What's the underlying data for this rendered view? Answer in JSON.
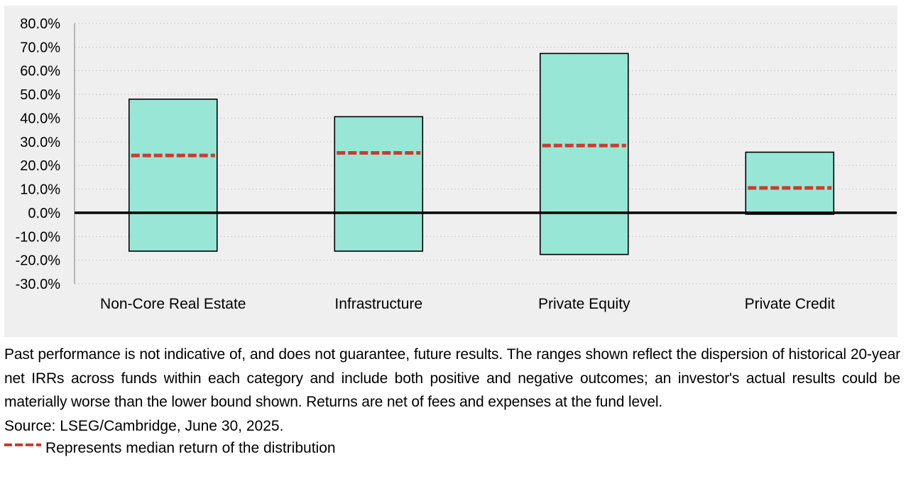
{
  "chart_data": {
    "type": "bar",
    "categories": [
      "Non-Core Real Estate",
      "Infrastructure",
      "Private Equity",
      "Private Credit"
    ],
    "series": [
      {
        "values_low": [
          -16.2,
          -16.2,
          -17.6,
          -0.6
        ],
        "values_high": [
          48.0,
          40.6,
          67.3,
          25.6
        ],
        "median": [
          24.2,
          25.3,
          28.4,
          10.5
        ]
      }
    ],
    "ylim": [
      -30,
      80
    ],
    "yticks": [
      80,
      70,
      60,
      50,
      40,
      30,
      20,
      10,
      0,
      -10,
      -20,
      -30
    ],
    "ytick_labels": [
      "80.0%",
      "70.0%",
      "60.0%",
      "50.0%",
      "40.0%",
      "30.0%",
      "20.0%",
      "10.0%",
      "0.0%",
      "-10.0%",
      "-20.0%",
      "-30.0%"
    ],
    "grid": true,
    "title": "",
    "xlabel": "",
    "ylabel": "",
    "colors": {
      "bar_fill": "#98e7d6",
      "bar_stroke": "#000000",
      "median": "#d0392d",
      "zero_line": "#000000",
      "grid": "#c9c9c9",
      "background": "#efefef"
    }
  },
  "notes": {
    "disclaimer": "Past performance is not indicative of, and does not guarantee, future results. The ranges shown reflect the dispersion of historical 20-year net IRRs across funds within each category and include both positive and negative outcomes; an investor's actual results could be materially worse than the lower bound shown. Returns are net of fees and expenses at the fund level.",
    "source": "Source: LSEG/Cambridge, June 30, 2025.",
    "legend_label": "Represents median return of the distribution",
    "legend_icon": "red-dashed-line",
    "legend_color": "#d0392d"
  }
}
